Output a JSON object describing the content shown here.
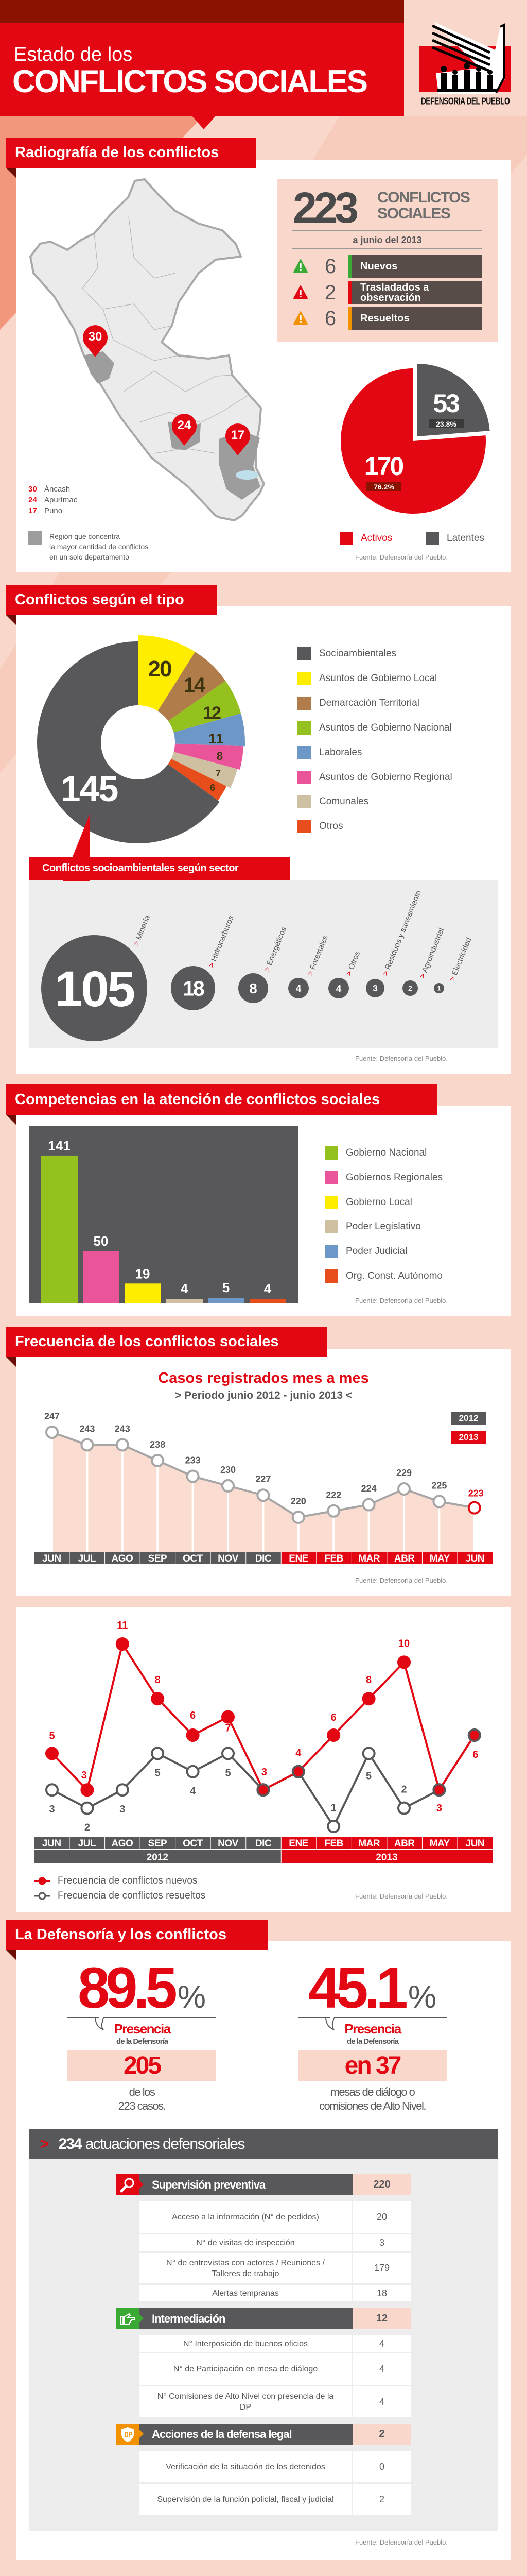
{
  "header": {
    "title_line1": "Estado de los",
    "title_line2": "CONFLICTOS SOCIALES",
    "logo_text": "DEFENSORIA DEL PUEBLO"
  },
  "colors": {
    "red": "#e30613",
    "dark_red": "#8b1100",
    "dark_gray": "#58585a",
    "background": "#f9d8cb"
  },
  "radiografia": {
    "title": "Radiografía de los conflictos",
    "total": "223",
    "total_label_1": "CONFLICTOS",
    "total_label_2": "SOCIALES",
    "date": "a junio del 2013",
    "status_rows": [
      {
        "count": "6",
        "label": "Nuevos",
        "color": "#3aaa35",
        "icon": "warning-icon"
      },
      {
        "count": "2",
        "label": "Trasladados a observación",
        "color": "#e30613",
        "icon": "warning-icon"
      },
      {
        "count": "6",
        "label": "Resueltos",
        "color": "#f39200",
        "icon": "warning-icon"
      }
    ],
    "map_pins": [
      {
        "value": "30",
        "region": "Áncash"
      },
      {
        "value": "24",
        "region": "Apurímac"
      },
      {
        "value": "17",
        "region": "Puno"
      }
    ],
    "region_legend": [
      "Región que concentra",
      "la mayor cantidad de conflictos",
      "en un solo departamento"
    ],
    "source": "Fuente: Defensoría del Pueblo."
  },
  "tipo": {
    "title": "Conflictos según el tipo",
    "callout": "Conflictos socioambientales según sector",
    "source": "Fuente: Defensoría del Pueblo."
  },
  "competencias": {
    "title": "Competencias en la atención de conflictos sociales",
    "source": "Fuente: Defensoría del Pueblo."
  },
  "frecuencia": {
    "title": "Frecuencia de los conflictos sociales",
    "source_1": "Fuente: Defensoría del Pueblo.",
    "source_2": "Fuente: Defensoría del Pueblo."
  },
  "defensoria": {
    "title": "La Defensoría y los conflictos",
    "stat_1": {
      "value": "89.5",
      "unit": "%",
      "presencia": "Presencia",
      "de_la": "de la Defensoría",
      "box": "205",
      "caption_1": "de los",
      "caption_2": "223 casos."
    },
    "stat_2": {
      "value": "45.1",
      "unit": "%",
      "presencia": "Presencia",
      "de_la": "de la Defensoría",
      "box": "en 37",
      "caption_1": "mesas de diálogo o",
      "caption_2": "comisiones de Alto Nivel."
    },
    "actuaciones_count": "234",
    "actuaciones_label": "actuaciones defensoriales",
    "groups": [
      {
        "title": "Supervisión preventiva",
        "value": "220",
        "icon": "magnifier-icon",
        "color": "#e30613",
        "rows": [
          {
            "label": "Acceso a la información (N° de pedidos)",
            "value": "20"
          },
          {
            "label": "N° de visitas de inspección",
            "value": "3"
          },
          {
            "label": "N° de entrevistas con actores / Reuniones / Talleres de trabajo",
            "value": "179"
          },
          {
            "label": "Alertas tempranas",
            "value": "18"
          }
        ]
      },
      {
        "title": "Intermediación",
        "value": "12",
        "icon": "pointing-hand-icon",
        "color": "#3aaa35",
        "rows": [
          {
            "label": "N° Interposición de buenos oficios",
            "value": "4"
          },
          {
            "label": "N° de Participación en mesa de diálogo",
            "value": "4"
          },
          {
            "label": "N° Comisiones de Alto Nivel con presencia de la DP",
            "value": "4"
          }
        ]
      },
      {
        "title": "Acciones de la defensa legal",
        "value": "2",
        "icon": "dp-shield-icon",
        "color": "#f39200",
        "rows": [
          {
            "label": "Verificación de la situación de los detenidos",
            "value": "0"
          },
          {
            "label": "Supervisión de la función policial, fiscal y judicial",
            "value": "2"
          }
        ]
      }
    ],
    "source": "Fuente: Defensoría del Pueblo."
  },
  "chart_data": [
    {
      "type": "pie",
      "categories": [
        "Activos",
        "Latentes"
      ],
      "values": [
        170,
        53
      ],
      "percent_labels": [
        "76.2%",
        "23.8%"
      ],
      "colors": [
        "#e30613",
        "#58585a"
      ],
      "legend_placement": "bottom"
    },
    {
      "type": "pie",
      "variant": "donut",
      "categories": [
        "Socioambientales",
        "Asuntos de Gobierno Local",
        "Demarcación Territorial",
        "Asuntos de Gobierno Nacional",
        "Laborales",
        "Asuntos de Gobierno Regional",
        "Comunales",
        "Otros"
      ],
      "values": [
        145,
        20,
        14,
        12,
        11,
        8,
        7,
        6
      ],
      "colors": [
        "#58585a",
        "#ffed00",
        "#b07d4a",
        "#95c11f",
        "#6c97c6",
        "#ea5599",
        "#cfc0a2",
        "#e84e1b"
      ],
      "legend_placement": "right"
    },
    {
      "type": "bubble",
      "categories": [
        "Minería",
        "Hidrocarburos",
        "Energéticos",
        "Forestales",
        "Otros",
        "Residuos y saneamiento",
        "Agroindustrial",
        "Electricidad"
      ],
      "values": [
        105,
        18,
        8,
        4,
        4,
        3,
        2,
        1
      ]
    },
    {
      "type": "bar",
      "categories": [
        "Gobierno Nacional",
        "Gobiernos Regionales",
        "Gobierno Local",
        "Poder Legislativo",
        "Poder Judicial",
        "Org. Const. Autónomo"
      ],
      "values": [
        141,
        50,
        19,
        4,
        5,
        4
      ],
      "colors": [
        "#95c11f",
        "#ea5599",
        "#ffed00",
        "#cfc0a2",
        "#6c97c6",
        "#e84e1b"
      ],
      "legend_placement": "right",
      "grid": false
    },
    {
      "type": "line",
      "title": "Casos registrados mes a mes",
      "subtitle": "> Periodo junio 2012 - junio 2013 <",
      "x": [
        "JUN",
        "JUL",
        "AGO",
        "SEP",
        "OCT",
        "NOV",
        "DIC",
        "ENE",
        "FEB",
        "MAR",
        "ABR",
        "MAY",
        "JUN"
      ],
      "x_years": [
        "2012",
        "2012",
        "2012",
        "2012",
        "2012",
        "2012",
        "2012",
        "2013",
        "2013",
        "2013",
        "2013",
        "2013",
        "2013"
      ],
      "values": [
        247,
        243,
        243,
        238,
        233,
        230,
        227,
        220,
        222,
        224,
        229,
        225,
        223
      ],
      "legend": [
        "2012",
        "2013"
      ],
      "legend_placement": "top-right",
      "grid": false
    },
    {
      "type": "line",
      "x": [
        "JUN",
        "JUL",
        "AGO",
        "SEP",
        "OCT",
        "NOV",
        "DIC",
        "ENE",
        "FEB",
        "MAR",
        "ABR",
        "MAY",
        "JUN"
      ],
      "years": [
        {
          "label": "2012",
          "months": 7
        },
        {
          "label": "2013",
          "months": 6
        }
      ],
      "series": [
        {
          "name": "Frecuencia de conflictos nuevos",
          "values": [
            5,
            3,
            11,
            8,
            6,
            7,
            3,
            4,
            6,
            8,
            10,
            3,
            6
          ],
          "color": "#e30613"
        },
        {
          "name": "Frecuencia de conflictos resueltos",
          "values": [
            3,
            2,
            3,
            5,
            4,
            5,
            3,
            4,
            1,
            5,
            2,
            3,
            6
          ],
          "color": "#58585a"
        }
      ],
      "legend_placement": "bottom-left",
      "grid": false
    }
  ]
}
